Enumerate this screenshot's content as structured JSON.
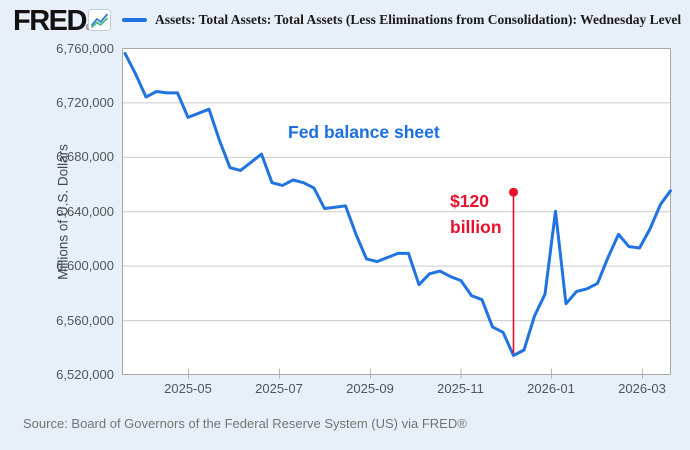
{
  "header": {
    "logo_text": "FRED",
    "registered_mark": "®",
    "legend_label": "Assets: Total Assets: Total Assets (Less Eliminations from Consolidation): Wednesday Level"
  },
  "chart_data": {
    "type": "line",
    "title": "",
    "xlabel": "",
    "ylabel": "Millions of U.S. Dollars",
    "ylim": [
      6520000,
      6760000
    ],
    "yticks": [
      6520000,
      6560000,
      6600000,
      6640000,
      6680000,
      6720000,
      6760000
    ],
    "ytick_labels": [
      "6,520,000",
      "6,560,000",
      "6,600,000",
      "6,640,000",
      "6,680,000",
      "6,720,000",
      "6,760,000"
    ],
    "xtick_labels": [
      "2025-05",
      "2025-07",
      "2025-09",
      "2025-11",
      "2026-01",
      "2026-03"
    ],
    "grid": "horizontal",
    "legend_position": "top",
    "line_color": "#2173e2",
    "series": [
      {
        "name": "Assets: Total Assets: Total Assets (Less Eliminations from Consolidation): Wednesday Level",
        "frequency": "weekly (Wednesday)",
        "dates": [
          "2025-03-19",
          "2025-03-26",
          "2025-04-02",
          "2025-04-09",
          "2025-04-16",
          "2025-04-23",
          "2025-04-30",
          "2025-05-07",
          "2025-05-14",
          "2025-05-21",
          "2025-05-28",
          "2025-06-04",
          "2025-06-11",
          "2025-06-18",
          "2025-06-25",
          "2025-07-02",
          "2025-07-09",
          "2025-07-16",
          "2025-07-23",
          "2025-07-30",
          "2025-08-06",
          "2025-08-13",
          "2025-08-20",
          "2025-08-27",
          "2025-09-03",
          "2025-09-10",
          "2025-09-17",
          "2025-09-24",
          "2025-10-01",
          "2025-10-08",
          "2025-10-15",
          "2025-10-22",
          "2025-10-29",
          "2025-11-05",
          "2025-11-12",
          "2025-11-19",
          "2025-11-26",
          "2025-12-03",
          "2025-12-10",
          "2025-12-17",
          "2025-12-24",
          "2025-12-31",
          "2026-01-07",
          "2026-01-14",
          "2026-01-21",
          "2026-01-28",
          "2026-02-04",
          "2026-02-11",
          "2026-02-18",
          "2026-02-25",
          "2026-03-04",
          "2026-03-11",
          "2026-03-18"
        ],
        "values": [
          6756000,
          6741000,
          6724000,
          6728000,
          6727000,
          6727000,
          6709000,
          6712000,
          6715000,
          6692000,
          6672000,
          6670000,
          6676000,
          6682000,
          6661000,
          6659000,
          6663000,
          6661000,
          6657000,
          6642000,
          6643000,
          6644000,
          6623000,
          6605000,
          6603000,
          6606000,
          6609000,
          6609000,
          6586000,
          6594000,
          6596000,
          6592000,
          6589000,
          6578000,
          6575000,
          6555000,
          6551000,
          6534000,
          6538000,
          6563000,
          6579000,
          6640000,
          6572000,
          6581000,
          6583000,
          6587000,
          6606000,
          6623000,
          6614000,
          6613000,
          6627000,
          6645000,
          6655000
        ]
      }
    ],
    "annotations": {
      "note": {
        "text": "Fed balance sheet",
        "color": "#1b6fe0"
      },
      "drop": {
        "line1": "$120",
        "line2": "billion",
        "color": "#e8112d",
        "anchor_index": 37,
        "anchor_date": "2025-12-03",
        "from_value": 6654000,
        "to_value": 6534000,
        "marker": "dot-with-vertical-line"
      }
    }
  },
  "footer": {
    "source_text": "Source: Board of Governors of the Federal Reserve System (US) via FRED®"
  }
}
